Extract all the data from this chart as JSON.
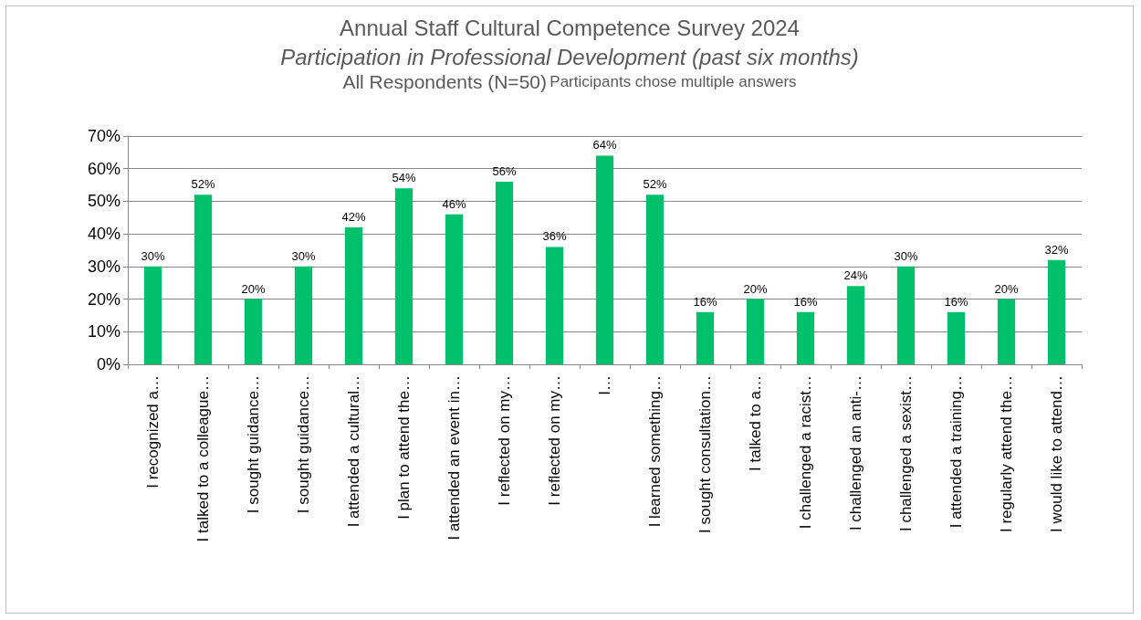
{
  "chart_data": {
    "type": "bar",
    "title": "Annual Staff Cultural Competence Survey 2024",
    "subtitle": "Participation in Professional Development (past six months)",
    "annotations": [
      "All Respondents (N=50)",
      "Participants chose multiple answers"
    ],
    "categories": [
      "I recognized a…",
      "I talked to a colleague…",
      "I sought guidance…",
      "I sought guidance…",
      "I attended a cultural…",
      "I plan to attend the…",
      "I attended an event in…",
      "I reflected on my…",
      "I reflected on my…",
      "I…",
      "I learned something…",
      "I sought consultation…",
      "I talked to a…",
      "I challenged a racist…",
      "I challenged an anti-…",
      "I challenged a sexist…",
      "I attended a training…",
      "I regularly attend the…",
      "I would like to attend…"
    ],
    "values": [
      30,
      52,
      20,
      30,
      42,
      54,
      46,
      56,
      36,
      64,
      52,
      16,
      20,
      16,
      24,
      30,
      16,
      20,
      32
    ],
    "value_labels": [
      "30%",
      "52%",
      "20%",
      "30%",
      "42%",
      "54%",
      "46%",
      "56%",
      "36%",
      "64%",
      "52%",
      "16%",
      "20%",
      "16%",
      "24%",
      "30%",
      "16%",
      "20%",
      "32%"
    ],
    "color": "#00c06b",
    "ylim": [
      0,
      70
    ],
    "yticks": [
      {
        "value": 0,
        "label": "0%"
      },
      {
        "value": 10,
        "label": "10%"
      },
      {
        "value": 20,
        "label": "20%"
      },
      {
        "value": 30,
        "label": "30%"
      },
      {
        "value": 40,
        "label": "40%"
      },
      {
        "value": 50,
        "label": "50%"
      },
      {
        "value": 60,
        "label": "60%"
      },
      {
        "value": 70,
        "label": "70%"
      }
    ],
    "grid": "y"
  }
}
